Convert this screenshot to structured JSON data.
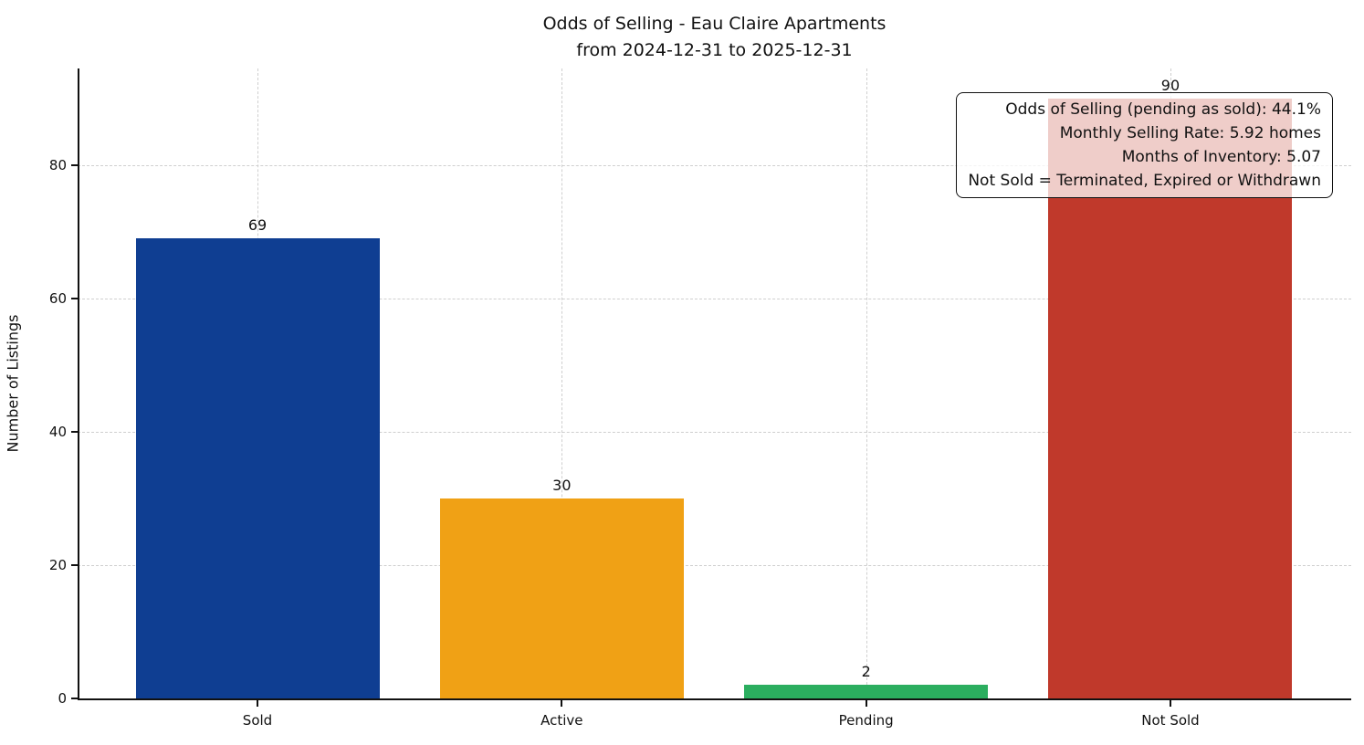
{
  "title": {
    "line1": "Odds of Selling - Eau Claire Apartments",
    "line2": "from 2024-12-31 to 2025-12-31"
  },
  "chart_data": {
    "type": "bar",
    "title": "Odds of Selling - Eau Claire Apartments\nfrom 2024-12-31 to 2025-12-31",
    "categories": [
      "Sold",
      "Active",
      "Pending",
      "Not Sold"
    ],
    "values": [
      69,
      30,
      2,
      90
    ],
    "bar_colors": [
      "#0f3e92",
      "#f0a115",
      "#2bae5f",
      "#c0392b"
    ],
    "xlabel": "",
    "ylabel": "Number of Listings",
    "ylim": [
      0,
      94.5
    ],
    "yticks": [
      0,
      20,
      40,
      60,
      80
    ],
    "grid": "dashed-both-axes",
    "legend": "none",
    "annotation": {
      "position": "top-right",
      "lines": [
        "Odds of Selling (pending as sold): 44.1%",
        "Monthly Selling Rate: 5.92 homes",
        "Months of Inventory: 5.07",
        "Not Sold = Terminated, Expired or Withdrawn"
      ]
    }
  }
}
